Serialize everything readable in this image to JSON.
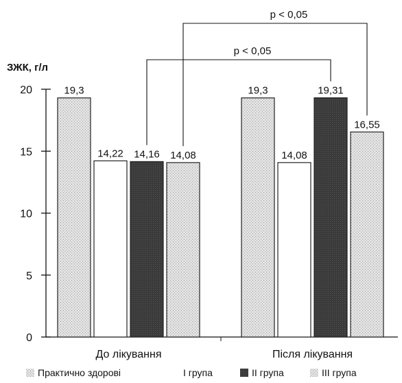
{
  "chart_data": {
    "type": "bar",
    "ylabel": "ЗЖК, г/л",
    "ylim": [
      0,
      20
    ],
    "yticks": [
      0,
      5,
      10,
      15,
      20
    ],
    "grid": false,
    "legend_position": "bottom",
    "categories": [
      "До лікування",
      "Після лікування"
    ],
    "series": [
      {
        "name": "Практично здорові",
        "values": [
          19.3,
          19.3
        ],
        "labels": [
          "19,3",
          "19,3"
        ],
        "color": "#d4d4d4",
        "pattern": "dots"
      },
      {
        "name": "І група",
        "values": [
          14.22,
          14.08
        ],
        "labels": [
          "14,22",
          "14,08"
        ],
        "color": "#ffffff",
        "pattern": "none"
      },
      {
        "name": "ІІ група",
        "values": [
          14.16,
          19.31
        ],
        "labels": [
          "14,16",
          "19,31"
        ],
        "color": "#3a3a3a",
        "pattern": "dark"
      },
      {
        "name": "ІІІ група",
        "values": [
          14.08,
          16.55
        ],
        "labels": [
          "14,08",
          "16,55"
        ],
        "color": "#dcdcdc",
        "pattern": "dots"
      }
    ],
    "annotations": [
      {
        "text": "p < 0,05",
        "from": [
          "До лікування",
          "ІІ група"
        ],
        "to": [
          "Після лікування",
          "ІІ група"
        ]
      },
      {
        "text": "p < 0,05",
        "from": [
          "До лікування",
          "ІІІ група"
        ],
        "to": [
          "Після лікування",
          "ІІІ група"
        ]
      }
    ]
  }
}
